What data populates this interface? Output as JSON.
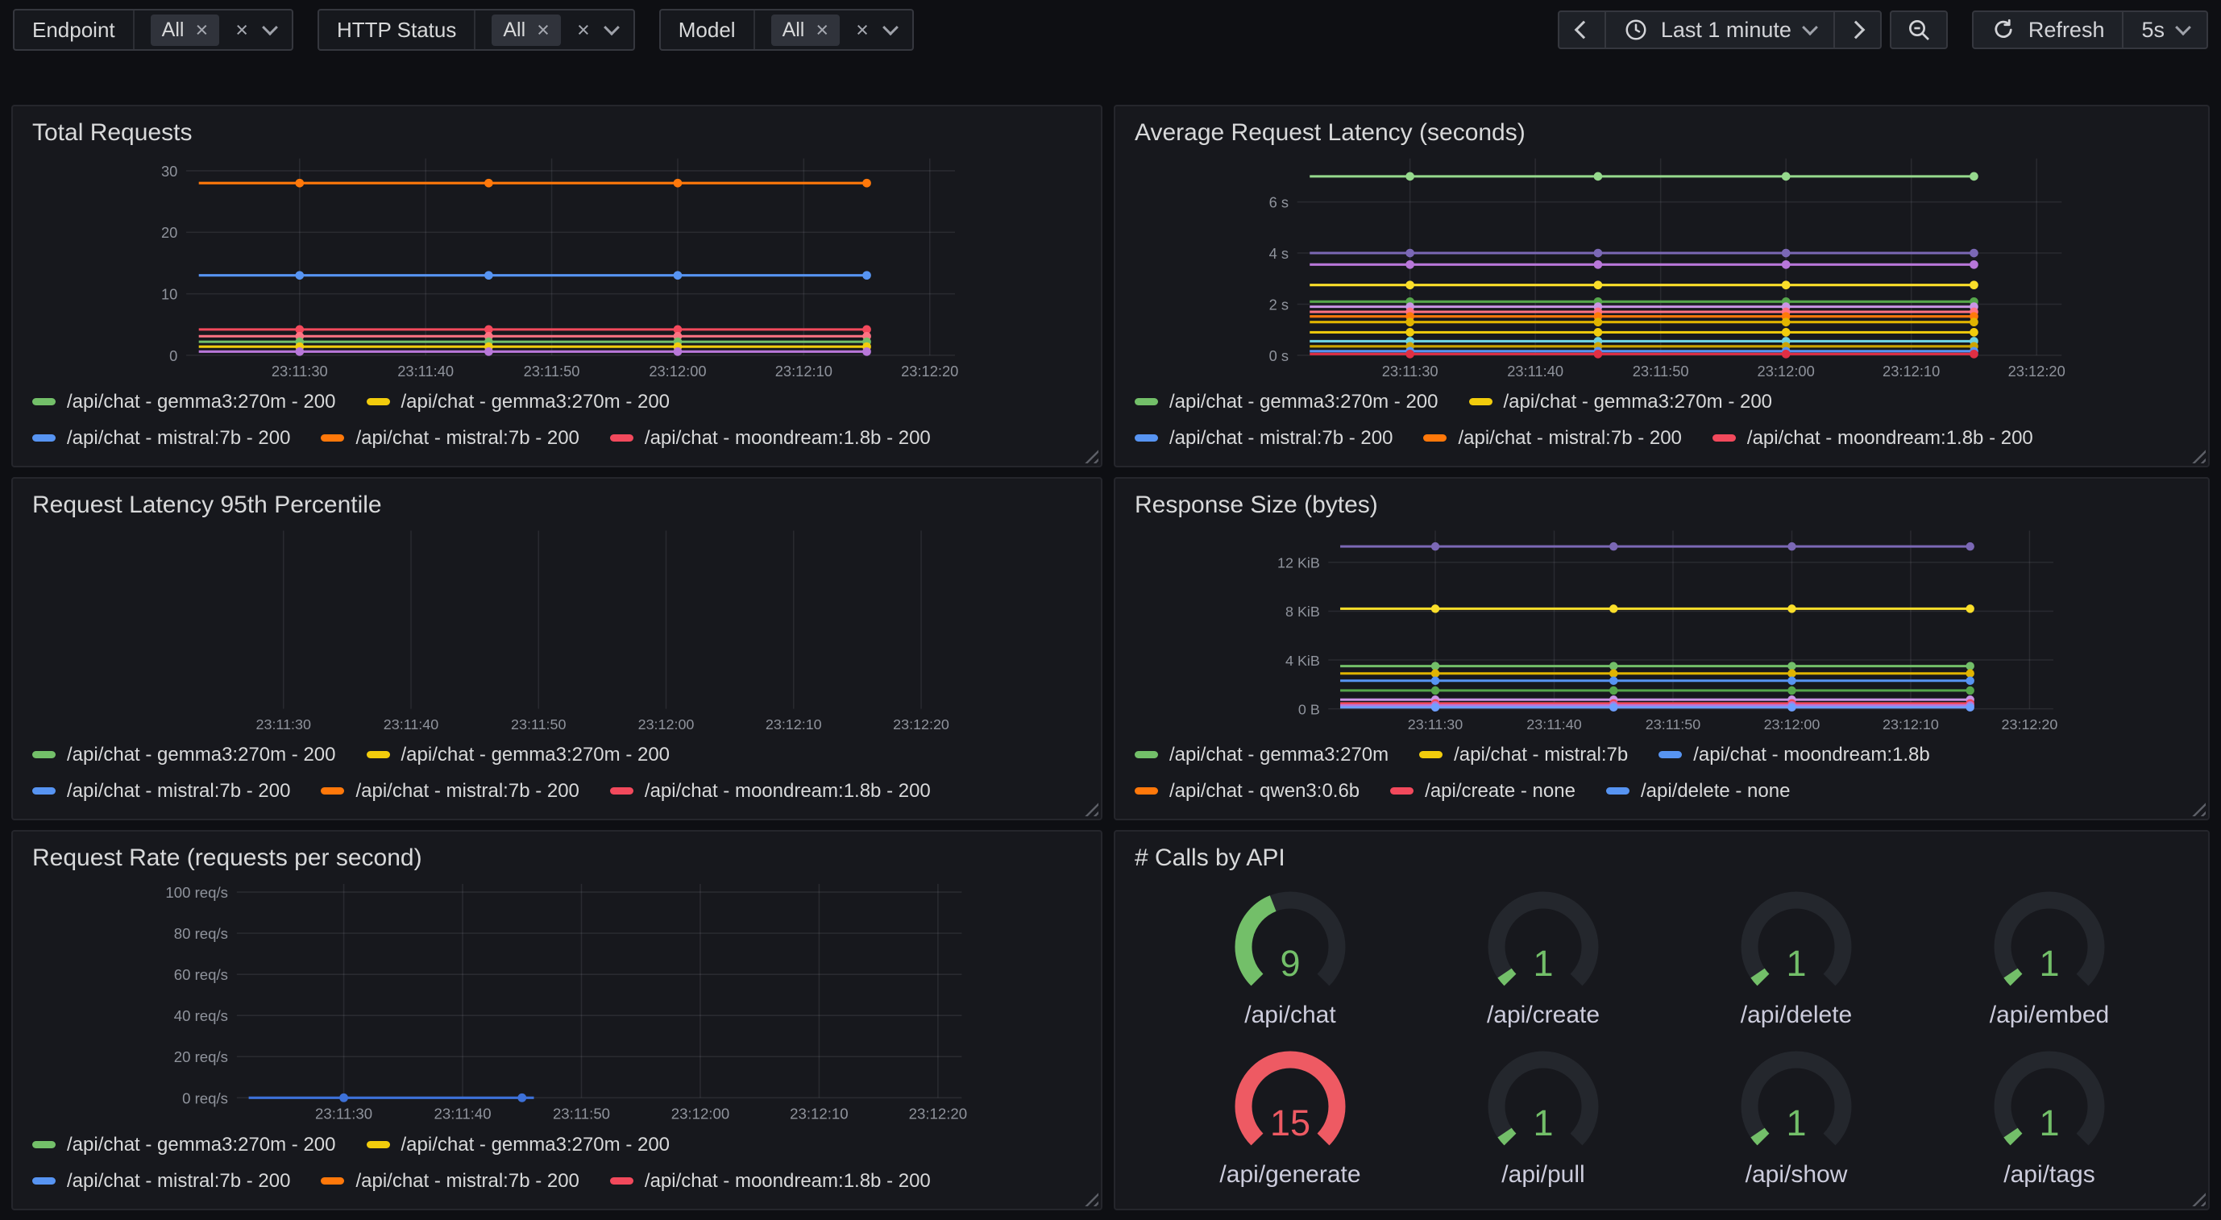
{
  "topbar": {
    "filters": [
      {
        "label": "Endpoint",
        "value": "All"
      },
      {
        "label": "HTTP Status",
        "value": "All"
      },
      {
        "label": "Model",
        "value": "All"
      }
    ],
    "time_range": "Last 1 minute",
    "refresh_label": "Refresh",
    "refresh_interval": "5s"
  },
  "colors": {
    "green": "#73bf69",
    "yellow": "#f2cc0c",
    "blue": "#5794f2",
    "orange": "#ff780a",
    "red": "#f2495c",
    "purple": "#7b68b5",
    "panel_bg": "#17181d",
    "page_bg": "#0e0f13"
  },
  "charts": {
    "total_requests": {
      "title": "Total Requests",
      "type": "line",
      "xlim": [
        81,
        142
      ],
      "x_ticks": [
        {
          "t": 90,
          "label": "23:11:30"
        },
        {
          "t": 100,
          "label": "23:11:40"
        },
        {
          "t": 110,
          "label": "23:11:50"
        },
        {
          "t": 120,
          "label": "23:12:00"
        },
        {
          "t": 130,
          "label": "23:12:10"
        },
        {
          "t": 140,
          "label": "23:12:20"
        }
      ],
      "ylim": [
        0,
        32
      ],
      "y_ticks": [
        {
          "v": 0,
          "label": "0"
        },
        {
          "v": 10,
          "label": "10"
        },
        {
          "v": 20,
          "label": "20"
        },
        {
          "v": 30,
          "label": "30"
        }
      ],
      "line_span": [
        82,
        135
      ],
      "points_t": [
        90,
        105,
        120,
        135
      ],
      "series": [
        {
          "name": "/api/chat - mistral:7b - 200",
          "color": "#ff780a",
          "value": 28
        },
        {
          "name": "/api/chat - mistral:7b - 200",
          "color": "#5794f2",
          "value": 13
        },
        {
          "name": "/api/chat - moondream:1.8b - 200",
          "color": "#f2495c",
          "value": 4.2
        },
        {
          "name": "",
          "color": "#ff7383",
          "value": 3.1
        },
        {
          "name": "/api/chat - gemma3:270m - 200",
          "color": "#73bf69",
          "value": 2.2
        },
        {
          "name": "/api/chat - gemma3:270m - 200",
          "color": "#f2cc0c",
          "value": 1.4
        },
        {
          "name": "",
          "color": "#b877d9",
          "value": 0.6
        }
      ],
      "legend": [
        [
          {
            "color": "#73bf69",
            "label": "/api/chat - gemma3:270m - 200"
          },
          {
            "color": "#f2cc0c",
            "label": "/api/chat - gemma3:270m - 200"
          }
        ],
        [
          {
            "color": "#5794f2",
            "label": "/api/chat - mistral:7b - 200"
          },
          {
            "color": "#ff780a",
            "label": "/api/chat - mistral:7b - 200"
          },
          {
            "color": "#f2495c",
            "label": "/api/chat - moondream:1.8b - 200"
          }
        ]
      ]
    },
    "avg_latency": {
      "title": "Average Request Latency (seconds)",
      "type": "line",
      "xlim": [
        81,
        142
      ],
      "x_ticks": [
        {
          "t": 90,
          "label": "23:11:30"
        },
        {
          "t": 100,
          "label": "23:11:40"
        },
        {
          "t": 110,
          "label": "23:11:50"
        },
        {
          "t": 120,
          "label": "23:12:00"
        },
        {
          "t": 130,
          "label": "23:12:10"
        },
        {
          "t": 140,
          "label": "23:12:20"
        }
      ],
      "ylim": [
        0,
        7.7
      ],
      "y_ticks": [
        {
          "v": 0,
          "label": "0 s"
        },
        {
          "v": 2,
          "label": "2 s"
        },
        {
          "v": 4,
          "label": "4 s"
        },
        {
          "v": 6,
          "label": "6 s"
        }
      ],
      "line_span": [
        82,
        135
      ],
      "points_t": [
        90,
        105,
        120,
        135
      ],
      "series": [
        {
          "name": "/api/chat - gemma3:270m - 200",
          "color": "#96d98d",
          "value": 7.0
        },
        {
          "name": "",
          "color": "#7b68b5",
          "value": 4.0
        },
        {
          "name": "",
          "color": "#b877d9",
          "value": 3.55
        },
        {
          "name": "",
          "color": "#fade2a",
          "value": 2.75
        },
        {
          "name": "",
          "color": "#56a64b",
          "value": 2.1
        },
        {
          "name": "",
          "color": "#ca95e5",
          "value": 1.9
        },
        {
          "name": "",
          "color": "#ff7383",
          "value": 1.7
        },
        {
          "name": "",
          "color": "#ff780a",
          "value": 1.52
        },
        {
          "name": "",
          "color": "#e0b400",
          "value": 1.3
        },
        {
          "name": "",
          "color": "#f2cc0c",
          "value": 0.9
        },
        {
          "name": "",
          "color": "#6ed0e0",
          "value": 0.55
        },
        {
          "name": "",
          "color": "#cca300",
          "value": 0.35
        },
        {
          "name": "",
          "color": "#5794f2",
          "value": 0.16
        },
        {
          "name": "",
          "color": "#e02f44",
          "value": 0.05
        }
      ],
      "legend": [
        [
          {
            "color": "#73bf69",
            "label": "/api/chat - gemma3:270m - 200"
          },
          {
            "color": "#f2cc0c",
            "label": "/api/chat - gemma3:270m - 200"
          }
        ],
        [
          {
            "color": "#5794f2",
            "label": "/api/chat - mistral:7b - 200"
          },
          {
            "color": "#ff780a",
            "label": "/api/chat - mistral:7b - 200"
          },
          {
            "color": "#f2495c",
            "label": "/api/chat - moondream:1.8b - 200"
          }
        ]
      ]
    },
    "latency_p95": {
      "title": "Request Latency 95th Percentile",
      "type": "line",
      "xlim": [
        81,
        142
      ],
      "x_ticks": [
        {
          "t": 90,
          "label": "23:11:30"
        },
        {
          "t": 100,
          "label": "23:11:40"
        },
        {
          "t": 110,
          "label": "23:11:50"
        },
        {
          "t": 120,
          "label": "23:12:00"
        },
        {
          "t": 130,
          "label": "23:12:10"
        },
        {
          "t": 140,
          "label": "23:12:20"
        }
      ],
      "ylim": [
        0,
        1
      ],
      "y_ticks": [],
      "line_span": [
        82,
        135
      ],
      "points_t": [],
      "series": [],
      "legend": [
        [
          {
            "color": "#73bf69",
            "label": "/api/chat - gemma3:270m - 200"
          },
          {
            "color": "#f2cc0c",
            "label": "/api/chat - gemma3:270m - 200"
          }
        ],
        [
          {
            "color": "#5794f2",
            "label": "/api/chat - mistral:7b - 200"
          },
          {
            "color": "#ff780a",
            "label": "/api/chat - mistral:7b - 200"
          },
          {
            "color": "#f2495c",
            "label": "/api/chat - moondream:1.8b - 200"
          }
        ]
      ]
    },
    "response_size": {
      "title": "Response Size (bytes)",
      "type": "line",
      "xlim": [
        81,
        142
      ],
      "x_ticks": [
        {
          "t": 90,
          "label": "23:11:30"
        },
        {
          "t": 100,
          "label": "23:11:40"
        },
        {
          "t": 110,
          "label": "23:11:50"
        },
        {
          "t": 120,
          "label": "23:12:00"
        },
        {
          "t": 130,
          "label": "23:12:10"
        },
        {
          "t": 140,
          "label": "23:12:20"
        }
      ],
      "ylim": [
        0,
        14.6
      ],
      "y_ticks": [
        {
          "v": 0,
          "label": "0 B"
        },
        {
          "v": 4,
          "label": "4 KiB"
        },
        {
          "v": 8,
          "label": "8 KiB"
        },
        {
          "v": 12,
          "label": "12 KiB"
        }
      ],
      "line_span": [
        82,
        135
      ],
      "points_t": [
        90,
        105,
        120,
        135
      ],
      "series": [
        {
          "name": "",
          "color": "#7b68b5",
          "value": 13.3
        },
        {
          "name": "/api/chat - mistral:7b",
          "color": "#fade2a",
          "value": 8.2
        },
        {
          "name": "/api/chat - gemma3:270m",
          "color": "#73bf69",
          "value": 3.5
        },
        {
          "name": "",
          "color": "#e0b400",
          "value": 2.9
        },
        {
          "name": "/api/chat - moondream:1.8b",
          "color": "#5794f2",
          "value": 2.3
        },
        {
          "name": "",
          "color": "#56a64b",
          "value": 1.5
        },
        {
          "name": "",
          "color": "#ca95e5",
          "value": 0.75
        },
        {
          "name": "/api/create - none",
          "color": "#f2495c",
          "value": 0.45
        },
        {
          "name": "",
          "color": "#b877d9",
          "value": 0.28
        },
        {
          "name": "/api/delete - none",
          "color": "#6e9fff",
          "value": 0.12
        }
      ],
      "legend": [
        [
          {
            "color": "#73bf69",
            "label": "/api/chat - gemma3:270m"
          },
          {
            "color": "#f2cc0c",
            "label": "/api/chat - mistral:7b"
          },
          {
            "color": "#5794f2",
            "label": "/api/chat - moondream:1.8b"
          }
        ],
        [
          {
            "color": "#ff780a",
            "label": "/api/chat - qwen3:0.6b"
          },
          {
            "color": "#f2495c",
            "label": "/api/create - none"
          },
          {
            "color": "#5794f2",
            "label": "/api/delete - none"
          }
        ]
      ]
    },
    "request_rate": {
      "title": "Request Rate (requests per second)",
      "type": "line",
      "xlim": [
        81,
        142
      ],
      "x_ticks": [
        {
          "t": 90,
          "label": "23:11:30"
        },
        {
          "t": 100,
          "label": "23:11:40"
        },
        {
          "t": 110,
          "label": "23:11:50"
        },
        {
          "t": 120,
          "label": "23:12:00"
        },
        {
          "t": 130,
          "label": "23:12:10"
        },
        {
          "t": 140,
          "label": "23:12:20"
        }
      ],
      "ylim": [
        0,
        104
      ],
      "y_ticks": [
        {
          "v": 0,
          "label": "0 req/s"
        },
        {
          "v": 20,
          "label": "20 req/s"
        },
        {
          "v": 40,
          "label": "40 req/s"
        },
        {
          "v": 60,
          "label": "60 req/s"
        },
        {
          "v": 80,
          "label": "80 req/s"
        },
        {
          "v": 100,
          "label": "100 req/s"
        }
      ],
      "line_span": [
        82,
        106
      ],
      "points_t": [
        90,
        105
      ],
      "series": [
        {
          "name": "/api/chat - mistral:7b - 200",
          "color": "#3d71d9",
          "value": 0
        }
      ],
      "legend": [
        [
          {
            "color": "#73bf69",
            "label": "/api/chat - gemma3:270m - 200"
          },
          {
            "color": "#f2cc0c",
            "label": "/api/chat - gemma3:270m - 200"
          }
        ],
        [
          {
            "color": "#5794f2",
            "label": "/api/chat - mistral:7b - 200"
          },
          {
            "color": "#ff780a",
            "label": "/api/chat - mistral:7b - 200"
          },
          {
            "color": "#f2495c",
            "label": "/api/chat - moondream:1.8b - 200"
          }
        ]
      ]
    }
  },
  "gauges": {
    "title": "# Calls by API",
    "items": [
      {
        "label": "/api/chat",
        "value": "9",
        "fill": 0.42,
        "color": "#73bf69"
      },
      {
        "label": "/api/create",
        "value": "1",
        "fill": 0.04,
        "color": "#73bf69"
      },
      {
        "label": "/api/delete",
        "value": "1",
        "fill": 0.04,
        "color": "#73bf69"
      },
      {
        "label": "/api/embed",
        "value": "1",
        "fill": 0.04,
        "color": "#73bf69"
      },
      {
        "label": "/api/generate",
        "value": "15",
        "fill": 1.0,
        "color": "#ee5a63"
      },
      {
        "label": "/api/pull",
        "value": "1",
        "fill": 0.04,
        "color": "#73bf69"
      },
      {
        "label": "/api/show",
        "value": "1",
        "fill": 0.04,
        "color": "#73bf69"
      },
      {
        "label": "/api/tags",
        "value": "1",
        "fill": 0.04,
        "color": "#73bf69"
      }
    ]
  }
}
